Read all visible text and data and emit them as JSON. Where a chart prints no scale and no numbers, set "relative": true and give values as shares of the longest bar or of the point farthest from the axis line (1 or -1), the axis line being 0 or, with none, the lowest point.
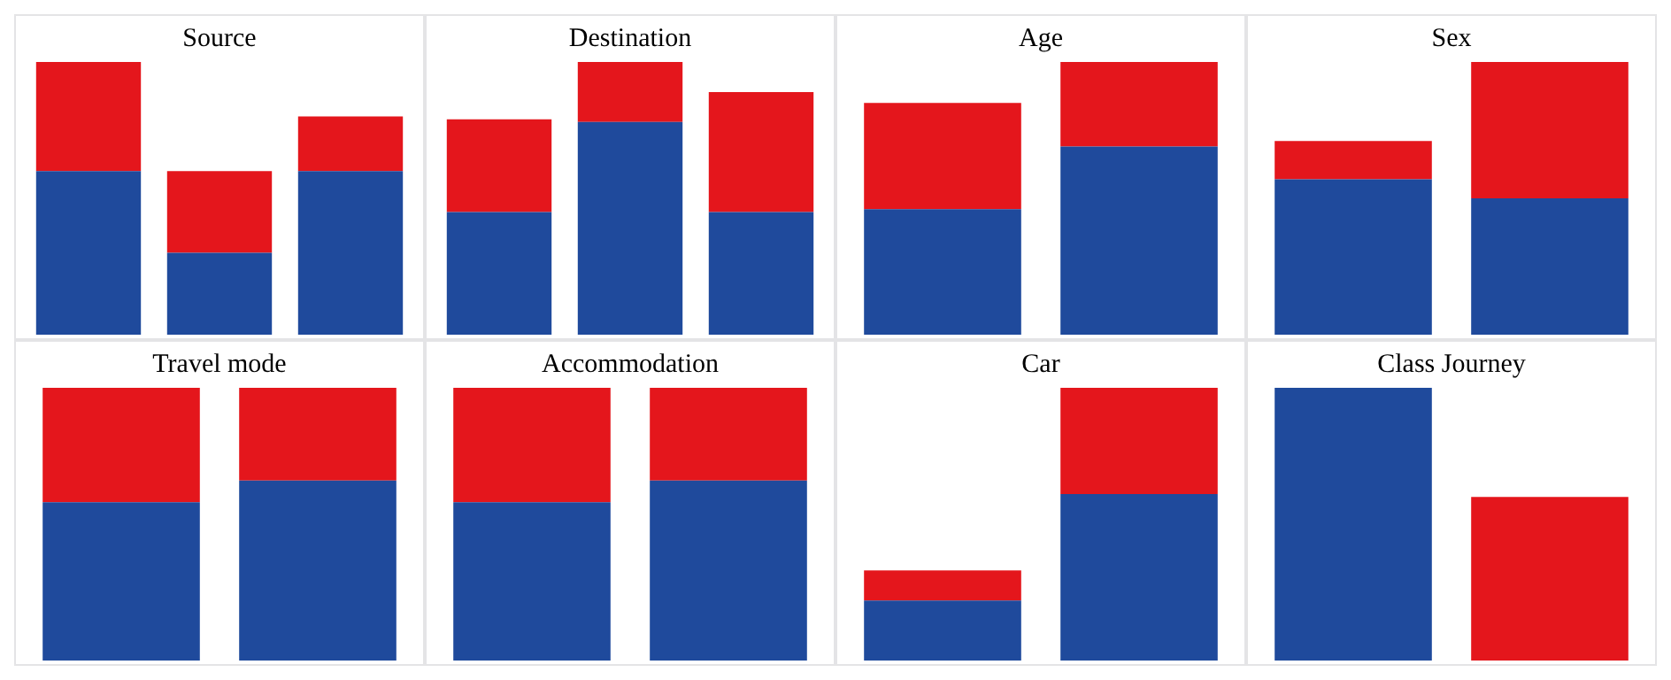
{
  "chart_data": [
    {
      "type": "bar",
      "title": "Source",
      "relative": true,
      "stacked": true,
      "categories": [
        null,
        null,
        null
      ],
      "series": [
        {
          "color": "#1f4a9c",
          "values": [
            0.6,
            0.3,
            0.6
          ]
        },
        {
          "color": "#e4161c",
          "values": [
            0.4,
            0.3,
            0.2
          ]
        }
      ]
    },
    {
      "type": "bar",
      "title": "Destination",
      "relative": true,
      "stacked": true,
      "categories": [
        null,
        null,
        null
      ],
      "series": [
        {
          "color": "#1f4a9c",
          "values": [
            0.45,
            0.78,
            0.45
          ]
        },
        {
          "color": "#e4161c",
          "values": [
            0.34,
            0.22,
            0.44
          ]
        }
      ]
    },
    {
      "type": "bar",
      "title": "Age",
      "relative": true,
      "stacked": true,
      "categories": [
        null,
        null
      ],
      "series": [
        {
          "color": "#1f4a9c",
          "values": [
            0.46,
            0.69
          ]
        },
        {
          "color": "#e4161c",
          "values": [
            0.39,
            0.31
          ]
        }
      ]
    },
    {
      "type": "bar",
      "title": "Sex",
      "relative": true,
      "stacked": true,
      "categories": [
        null,
        null
      ],
      "series": [
        {
          "color": "#1f4a9c",
          "values": [
            0.57,
            0.5
          ]
        },
        {
          "color": "#e4161c",
          "values": [
            0.14,
            0.5
          ]
        }
      ]
    },
    {
      "type": "bar",
      "title": "Travel mode",
      "relative": true,
      "stacked": true,
      "categories": [
        null,
        null
      ],
      "series": [
        {
          "color": "#1f4a9c",
          "values": [
            0.58,
            0.66
          ]
        },
        {
          "color": "#e4161c",
          "values": [
            0.42,
            0.34
          ]
        }
      ]
    },
    {
      "type": "bar",
      "title": "Accommodation",
      "relative": true,
      "stacked": true,
      "categories": [
        null,
        null
      ],
      "series": [
        {
          "color": "#1f4a9c",
          "values": [
            0.58,
            0.66
          ]
        },
        {
          "color": "#e4161c",
          "values": [
            0.42,
            0.34
          ]
        }
      ]
    },
    {
      "type": "bar",
      "title": "Car",
      "relative": true,
      "stacked": true,
      "categories": [
        null,
        null
      ],
      "series": [
        {
          "color": "#1f4a9c",
          "values": [
            0.22,
            0.61
          ]
        },
        {
          "color": "#e4161c",
          "values": [
            0.11,
            0.39
          ]
        }
      ]
    },
    {
      "type": "bar",
      "title": "Class Journey",
      "relative": true,
      "stacked": true,
      "categories": [
        null,
        null
      ],
      "series": [
        {
          "color": "#1f4a9c",
          "values": [
            1,
            0
          ]
        },
        {
          "color": "#e4161c",
          "values": [
            0,
            0.6
          ]
        }
      ]
    }
  ]
}
